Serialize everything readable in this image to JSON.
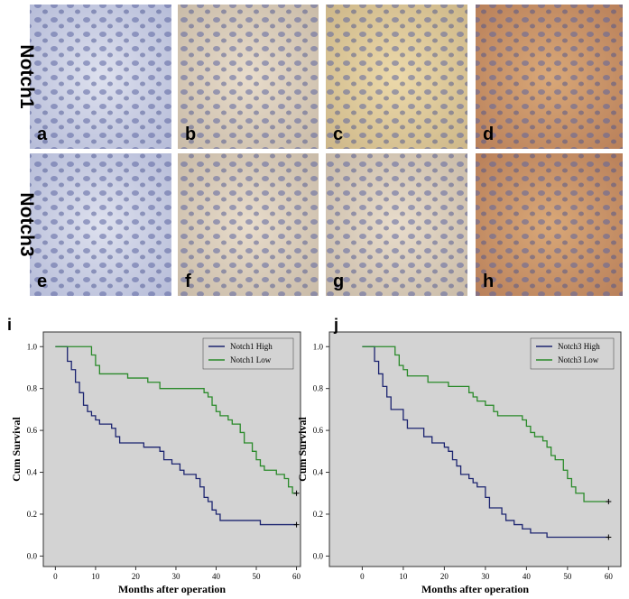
{
  "panels": {
    "rows": [
      "Notch1",
      "Notch3"
    ],
    "labels": [
      "a",
      "b",
      "c",
      "d",
      "e",
      "f",
      "g",
      "h"
    ]
  },
  "chart_data": [
    {
      "type": "step",
      "panel_label": "i",
      "xlabel": "Months after operation",
      "ylabel": "Cum Survival",
      "xlim": [
        -3,
        61
      ],
      "ylim": [
        -0.05,
        1.07
      ],
      "xticks": [
        0,
        10,
        20,
        30,
        40,
        50,
        60
      ],
      "yticks": [
        {
          "value": 0,
          "label": "0.0"
        },
        {
          "value": 0.2,
          "label": "0.2"
        },
        {
          "value": 0.4,
          "label": "0.4"
        },
        {
          "value": 0.6,
          "label": "0.6"
        },
        {
          "value": 0.8,
          "label": "0.8"
        },
        {
          "value": 1,
          "label": "1.0"
        }
      ],
      "series": [
        {
          "name": "Notch1 High",
          "color": "#1c2470",
          "x": [
            0,
            3,
            4,
            5,
            6,
            7,
            8,
            9,
            10,
            11,
            14,
            15,
            16,
            22,
            26,
            27,
            29,
            31,
            32,
            35,
            36,
            37,
            38,
            39,
            40,
            41,
            51,
            56,
            60
          ],
          "values": [
            1,
            0.93,
            0.89,
            0.83,
            0.78,
            0.72,
            0.69,
            0.67,
            0.65,
            0.63,
            0.61,
            0.57,
            0.54,
            0.52,
            0.5,
            0.46,
            0.44,
            0.41,
            0.39,
            0.37,
            0.33,
            0.28,
            0.26,
            0.22,
            0.2,
            0.17,
            0.15,
            0.15,
            0.15
          ]
        },
        {
          "name": "Notch1 Low",
          "color": "#2a8a2a",
          "x": [
            0,
            9,
            10,
            11,
            18,
            23,
            26,
            37,
            38,
            39,
            40,
            41,
            43,
            44,
            46,
            47,
            49,
            50,
            51,
            52,
            55,
            57,
            58,
            59,
            60
          ],
          "values": [
            1,
            0.96,
            0.91,
            0.87,
            0.85,
            0.83,
            0.8,
            0.78,
            0.76,
            0.72,
            0.69,
            0.67,
            0.65,
            0.63,
            0.59,
            0.54,
            0.5,
            0.46,
            0.43,
            0.41,
            0.39,
            0.37,
            0.33,
            0.3,
            0.3
          ]
        }
      ]
    },
    {
      "type": "step",
      "panel_label": "j",
      "xlabel": "Months after operation",
      "ylabel": "Cum Survival",
      "xlim": [
        -8,
        63
      ],
      "ylim": [
        -0.05,
        1.07
      ],
      "xticks": [
        0,
        10,
        20,
        30,
        40,
        50,
        60
      ],
      "yticks": [
        {
          "value": 0,
          "label": "0.0"
        },
        {
          "value": 0.2,
          "label": "0.2"
        },
        {
          "value": 0.4,
          "label": "0.4"
        },
        {
          "value": 0.6,
          "label": "0.6"
        },
        {
          "value": 0.8,
          "label": "0.8"
        },
        {
          "value": 1,
          "label": "1.0"
        }
      ],
      "series": [
        {
          "name": "Notch3 High",
          "color": "#1c2470",
          "x": [
            0,
            3,
            4,
            5,
            6,
            7,
            10,
            11,
            15,
            17,
            20,
            21,
            22,
            23,
            24,
            26,
            27,
            28,
            30,
            31,
            34,
            35,
            37,
            39,
            41,
            45,
            60
          ],
          "values": [
            1,
            0.93,
            0.87,
            0.81,
            0.76,
            0.7,
            0.65,
            0.61,
            0.57,
            0.54,
            0.52,
            0.5,
            0.46,
            0.43,
            0.39,
            0.37,
            0.35,
            0.33,
            0.28,
            0.23,
            0.2,
            0.17,
            0.15,
            0.13,
            0.11,
            0.09,
            0.09
          ]
        },
        {
          "name": "Notch3 Low",
          "color": "#2a8a2a",
          "x": [
            0,
            8,
            9,
            10,
            11,
            16,
            21,
            26,
            27,
            28,
            30,
            32,
            33,
            39,
            40,
            41,
            42,
            44,
            45,
            46,
            47,
            49,
            50,
            51,
            52,
            54,
            60
          ],
          "values": [
            1,
            0.96,
            0.91,
            0.89,
            0.86,
            0.83,
            0.81,
            0.78,
            0.76,
            0.74,
            0.72,
            0.69,
            0.67,
            0.65,
            0.62,
            0.59,
            0.57,
            0.55,
            0.52,
            0.48,
            0.46,
            0.41,
            0.37,
            0.33,
            0.3,
            0.26,
            0.26
          ]
        }
      ]
    }
  ]
}
